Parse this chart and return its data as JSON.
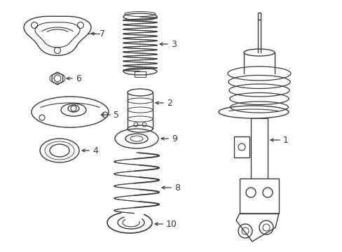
{
  "bg_color": "#ffffff",
  "line_color": "#3a3a3a",
  "lw": 1.0,
  "fig_width": 4.89,
  "fig_height": 3.6,
  "dpi": 100
}
